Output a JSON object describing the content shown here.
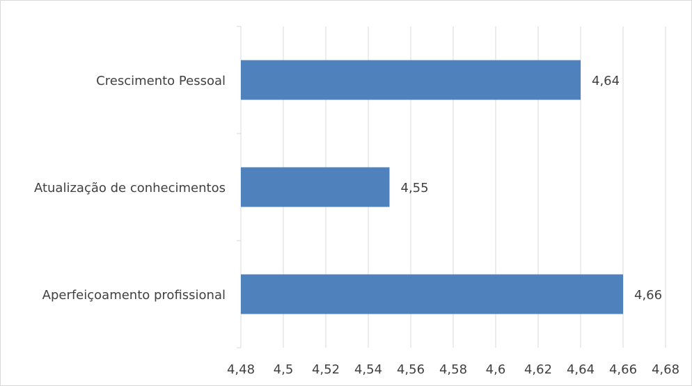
{
  "chart_data": {
    "type": "bar",
    "orientation": "horizontal",
    "categories": [
      "Crescimento Pessoal",
      "Atualização de conhecimentos",
      "Aperfeiçoamento profissional"
    ],
    "values": [
      4.64,
      4.55,
      4.66
    ],
    "value_labels": [
      "4,64",
      "4,55",
      "4,66"
    ],
    "xlim": [
      4.48,
      4.68
    ],
    "xticks": [
      4.48,
      4.5,
      4.52,
      4.54,
      4.56,
      4.58,
      4.6,
      4.62,
      4.64,
      4.66,
      4.68
    ],
    "xtick_labels": [
      "4,48",
      "4,5",
      "4,52",
      "4,54",
      "4,56",
      "4,58",
      "4,6",
      "4,62",
      "4,64",
      "4,66",
      "4,68"
    ],
    "grid": "vertical",
    "bar_color": "#4f81bd",
    "grid_color": "#d9d9d9",
    "title": "",
    "xlabel": "",
    "ylabel": ""
  }
}
